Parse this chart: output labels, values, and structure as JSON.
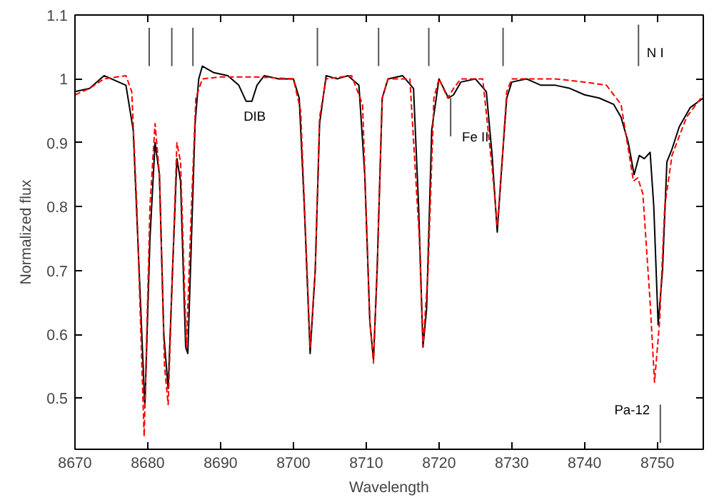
{
  "chart_data": {
    "type": "line",
    "xlabel": "Wavelength",
    "ylabel": "Normalized flux",
    "xlim": [
      8670,
      8756.3
    ],
    "ylim": [
      0.42,
      1.1
    ],
    "xticks": [
      8670,
      8680,
      8690,
      8700,
      8710,
      8720,
      8730,
      8740,
      8750
    ],
    "yticks": [
      {
        "value": 0.5,
        "label": "0.5"
      },
      {
        "value": 0.6,
        "label": "0.6"
      },
      {
        "value": 0.7,
        "label": "0.7"
      },
      {
        "value": 0.8,
        "label": "0.8"
      },
      {
        "value": 0.9,
        "label": "0.9"
      },
      {
        "value": 1,
        "label": "1"
      },
      {
        "value": 1.1,
        "label": "1.1"
      }
    ],
    "grid": false,
    "series": [
      {
        "color": "#000000",
        "line_style": "solid",
        "x": [
          8670,
          8672,
          8674,
          8676,
          8677,
          8678,
          8679,
          8679.6,
          8680.3,
          8681,
          8681.6,
          8682.2,
          8682.8,
          8683.4,
          8684,
          8684.5,
          8685.2,
          8685.5,
          8686,
          8686.5,
          8687,
          8687.5,
          8689,
          8691,
          8692.5,
          8693.5,
          8694.3,
          8695,
          8696,
          8698,
          8700,
          8700.8,
          8701.5,
          8702.3,
          8703,
          8703.6,
          8704.5,
          8706,
          8707.5,
          8709,
          8709.8,
          8710.5,
          8711,
          8711.5,
          8712.2,
          8713,
          8715,
          8716.5,
          8717.2,
          8717.8,
          8718.3,
          8719,
          8720,
          8721.3,
          8722,
          8723,
          8725,
          8726.5,
          8727.3,
          8728,
          8728.6,
          8729.3,
          8730,
          8732,
          8734,
          8736,
          8738,
          8740,
          8742,
          8744,
          8745,
          8746,
          8746.8,
          8747.5,
          8748.2,
          8749,
          8749.5,
          8750.1,
          8750.7,
          8751.3,
          8752,
          8753,
          8754.5,
          8756.3
        ],
        "values": [
          0.98,
          0.985,
          1.005,
          0.995,
          0.99,
          0.92,
          0.65,
          0.485,
          0.75,
          0.9,
          0.85,
          0.6,
          0.515,
          0.7,
          0.875,
          0.84,
          0.58,
          0.57,
          0.75,
          0.93,
          1.0,
          1.02,
          1.01,
          1.005,
          0.99,
          0.965,
          0.965,
          0.99,
          1.005,
          1.0,
          1.0,
          0.97,
          0.8,
          0.57,
          0.7,
          0.93,
          1.005,
          1.0,
          1.005,
          0.99,
          0.85,
          0.62,
          0.56,
          0.7,
          0.97,
          1.0,
          1.005,
          0.985,
          0.8,
          0.58,
          0.64,
          0.92,
          1.0,
          0.97,
          0.975,
          0.995,
          1.0,
          0.98,
          0.88,
          0.76,
          0.86,
          0.97,
          0.995,
          1.0,
          0.99,
          0.99,
          0.985,
          0.975,
          0.97,
          0.96,
          0.94,
          0.9,
          0.85,
          0.88,
          0.875,
          0.885,
          0.8,
          0.615,
          0.7,
          0.87,
          0.89,
          0.925,
          0.955,
          0.97
        ]
      },
      {
        "color": "#ff0000",
        "line_style": "dashed",
        "x": [
          8670,
          8672,
          8674,
          8677,
          8677.8,
          8678.5,
          8679.5,
          8680.3,
          8681,
          8681.6,
          8682.3,
          8682.8,
          8683.4,
          8684,
          8684.5,
          8685.3,
          8686,
          8686.6,
          8687.5,
          8690,
          8695,
          8700,
          8701,
          8702.3,
          8703,
          8703.6,
          8704.5,
          8708,
          8709.5,
          8710.5,
          8711,
          8711.5,
          8712.2,
          8713,
          8716,
          8717.3,
          8717.8,
          8718.5,
          8719.3,
          8720,
          8721.2,
          8722,
          8723,
          8726,
          8727.3,
          8728,
          8728.6,
          8729.3,
          8730,
          8733,
          8736,
          8740,
          8743,
          8745,
          8746,
          8746.7,
          8747.3,
          8748,
          8749,
          8749.6,
          8750.3,
          8751,
          8752,
          8754,
          8756.3
        ],
        "values": [
          0.975,
          0.985,
          1.0,
          1.005,
          0.98,
          0.8,
          0.44,
          0.8,
          0.93,
          0.85,
          0.55,
          0.49,
          0.7,
          0.9,
          0.87,
          0.58,
          0.8,
          0.97,
          1.0,
          1.003,
          1.003,
          1.0,
          0.95,
          0.58,
          0.7,
          0.94,
          1.0,
          1.005,
          0.96,
          0.62,
          0.555,
          0.7,
          0.97,
          1.0,
          1.0,
          0.75,
          0.58,
          0.7,
          0.97,
          1.0,
          0.97,
          0.985,
          1.0,
          1.0,
          0.86,
          0.77,
          0.86,
          0.98,
          1.0,
          1.0,
          1.0,
          0.995,
          0.99,
          0.96,
          0.89,
          0.84,
          0.845,
          0.82,
          0.65,
          0.525,
          0.62,
          0.8,
          0.88,
          0.94,
          0.975
        ]
      },
      {
        "color": "#555555",
        "line_style": "solid",
        "x": [
          8680.2,
          8680.2
        ],
        "values": [
          1.02,
          1.08
        ]
      },
      {
        "color": "#555555",
        "line_style": "solid",
        "x": [
          8683.3,
          8683.3
        ],
        "values": [
          1.02,
          1.08
        ]
      },
      {
        "color": "#555555",
        "line_style": "solid",
        "x": [
          8686.2,
          8686.2
        ],
        "values": [
          1.02,
          1.08
        ]
      },
      {
        "color": "#555555",
        "line_style": "solid",
        "x": [
          8703.3,
          8703.3
        ],
        "values": [
          1.02,
          1.08
        ]
      },
      {
        "color": "#555555",
        "line_style": "solid",
        "x": [
          8711.7,
          8711.7
        ],
        "values": [
          1.02,
          1.08
        ]
      },
      {
        "color": "#555555",
        "line_style": "solid",
        "x": [
          8718.6,
          8718.6
        ],
        "values": [
          1.02,
          1.08
        ]
      },
      {
        "color": "#555555",
        "line_style": "solid",
        "x": [
          8728.8,
          8728.8
        ],
        "values": [
          1.02,
          1.08
        ]
      },
      {
        "color": "#555555",
        "line_style": "solid",
        "x": [
          8747.4,
          8747.4
        ],
        "values": [
          1.02,
          1.085
        ]
      },
      {
        "color": "#555555",
        "line_style": "solid",
        "x": [
          8721.6,
          8721.6
        ],
        "values": [
          0.97,
          0.91
        ]
      },
      {
        "color": "#555555",
        "line_style": "solid",
        "x": [
          8750.4,
          8750.4
        ],
        "values": [
          0.49,
          0.43
        ]
      }
    ],
    "annotations": [
      "DIB",
      "Fe II",
      "Pa-12",
      "N I"
    ]
  }
}
